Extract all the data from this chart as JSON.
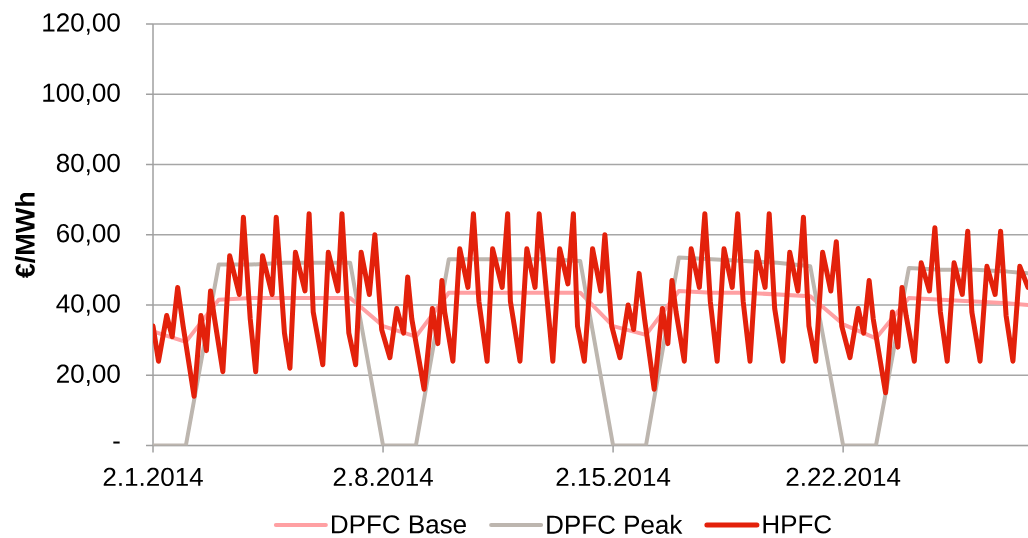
{
  "chart_data": {
    "type": "line",
    "ylabel": "€/MWh",
    "xlim": [
      "2014-02-01T00:00",
      "2014-02-27T15:00"
    ],
    "xticks": [
      {
        "value": "2014-02-01",
        "label": "2.1.2014"
      },
      {
        "value": "2014-02-08",
        "label": "2.8.2014"
      },
      {
        "value": "2014-02-15",
        "label": "2.15.2014"
      },
      {
        "value": "2014-02-22",
        "label": "2.22.2014"
      }
    ],
    "ylim": [
      0,
      120
    ],
    "yticks": [
      {
        "value": 0,
        "label": "-"
      },
      {
        "value": 20,
        "label": "20,00"
      },
      {
        "value": 40,
        "label": "40,00"
      },
      {
        "value": 60,
        "label": "60,00"
      },
      {
        "value": 80,
        "label": "80,00"
      },
      {
        "value": 100,
        "label": "100,00"
      },
      {
        "value": 120,
        "label": "120,00"
      }
    ],
    "grid": "y",
    "legend": "bottom",
    "marker": "none",
    "line_style": "solid",
    "series": [
      {
        "name": "DPFC Base",
        "color": "#ffa0a3",
        "x": [
          "2014-02-01",
          "2014-02-02",
          "2014-02-03",
          "2014-02-04",
          "2014-02-05",
          "2014-02-06",
          "2014-02-07",
          "2014-02-08",
          "2014-02-09",
          "2014-02-10",
          "2014-02-11",
          "2014-02-12",
          "2014-02-13",
          "2014-02-14",
          "2014-02-15",
          "2014-02-16",
          "2014-02-17",
          "2014-02-18",
          "2014-02-19",
          "2014-02-20",
          "2014-02-21",
          "2014-02-22",
          "2014-02-23",
          "2014-02-24",
          "2014-02-25",
          "2014-02-26",
          "2014-02-27",
          "2014-02-27T15:00"
        ],
        "values": [
          32.5,
          29.5,
          41.5,
          42,
          42,
          42,
          42,
          34,
          31,
          43.5,
          43.5,
          43.5,
          43.5,
          43.5,
          34,
          31.5,
          44,
          43.5,
          43.5,
          43,
          42.5,
          34.5,
          30.5,
          42,
          41.5,
          41,
          40.5,
          40
        ]
      },
      {
        "name": "DPFC Peak",
        "color": "#bdb6af",
        "x": [
          "2014-02-01",
          "2014-02-02",
          "2014-02-03",
          "2014-02-04",
          "2014-02-05",
          "2014-02-06",
          "2014-02-07",
          "2014-02-08",
          "2014-02-09",
          "2014-02-10",
          "2014-02-11",
          "2014-02-12",
          "2014-02-13",
          "2014-02-14",
          "2014-02-15",
          "2014-02-16",
          "2014-02-17",
          "2014-02-18",
          "2014-02-19",
          "2014-02-20",
          "2014-02-21",
          "2014-02-22",
          "2014-02-23",
          "2014-02-24",
          "2014-02-25",
          "2014-02-26",
          "2014-02-27",
          "2014-02-27T15:00"
        ],
        "values": [
          0,
          0,
          51.5,
          51.5,
          52,
          52,
          52,
          0,
          0,
          53,
          53,
          53,
          53,
          52.5,
          0,
          0,
          53.5,
          53,
          52.5,
          52,
          51,
          0,
          0,
          50.5,
          50,
          50,
          49.5,
          49
        ]
      },
      {
        "name": "HPFC",
        "color": "#e3210b",
        "x": [
          "2014-02-01T00:00",
          "2014-02-01T04:00",
          "2014-02-01T10:00",
          "2014-02-01T14:00",
          "2014-02-01T18:00",
          "2014-02-01T22:00",
          "2014-02-02T06:00",
          "2014-02-02T11:00",
          "2014-02-02T15:00",
          "2014-02-02T18:00",
          "2014-02-02T21:00",
          "2014-02-03T03:00",
          "2014-02-03T08:00",
          "2014-02-03T15:00",
          "2014-02-03T18:00",
          "2014-02-03T23:00",
          "2014-02-04T03:00",
          "2014-02-04T08:00",
          "2014-02-04T15:00",
          "2014-02-04T18:00",
          "2014-02-05T00:00",
          "2014-02-05T04:00",
          "2014-02-05T08:00",
          "2014-02-05T15:00",
          "2014-02-05T18:00",
          "2014-02-05T21:00",
          "2014-02-06T04:00",
          "2014-02-06T08:00",
          "2014-02-06T15:00",
          "2014-02-06T18:00",
          "2014-02-06T23:00",
          "2014-02-07T04:00",
          "2014-02-07T08:00",
          "2014-02-07T14:00",
          "2014-02-07T18:00",
          "2014-02-07T23:00",
          "2014-02-08T05:00",
          "2014-02-08T10:00",
          "2014-02-08T15:00",
          "2014-02-08T18:00",
          "2014-02-08T21:00",
          "2014-02-09T06:00",
          "2014-02-09T12:00",
          "2014-02-09T16:00",
          "2014-02-09T19:00",
          "2014-02-09T21:00",
          "2014-02-10T03:00",
          "2014-02-10T08:00",
          "2014-02-10T14:00",
          "2014-02-10T18:00",
          "2014-02-10T22:00",
          "2014-02-11T04:00",
          "2014-02-11T08:00",
          "2014-02-11T15:00",
          "2014-02-11T19:00",
          "2014-02-11T21:00",
          "2014-02-12T04:00",
          "2014-02-12T09:00",
          "2014-02-12T15:00",
          "2014-02-12T18:00",
          "2014-02-13T04:00",
          "2014-02-13T09:00",
          "2014-02-13T15:00",
          "2014-02-13T19:00",
          "2014-02-13T22:00",
          "2014-02-14T03:00",
          "2014-02-14T09:00",
          "2014-02-14T15:00",
          "2014-02-14T18:00",
          "2014-02-14T23:00",
          "2014-02-15T05:00",
          "2014-02-15T11:00",
          "2014-02-15T15:00",
          "2014-02-15T19:00",
          "2014-02-15T23:00",
          "2014-02-16T06:00",
          "2014-02-16T12:00",
          "2014-02-16T16:00",
          "2014-02-16T19:00",
          "2014-02-16T22:00",
          "2014-02-17T04:00",
          "2014-02-17T09:00",
          "2014-02-17T15:00",
          "2014-02-17T19:00",
          "2014-02-17T23:00",
          "2014-02-18T04:00",
          "2014-02-18T09:00",
          "2014-02-18T15:00",
          "2014-02-18T19:00",
          "2014-02-18T23:00",
          "2014-02-19T04:00",
          "2014-02-19T09:00",
          "2014-02-19T15:00",
          "2014-02-19T18:00",
          "2014-02-19T22:00",
          "2014-02-20T04:00",
          "2014-02-20T09:00",
          "2014-02-20T15:00",
          "2014-02-20T19:00",
          "2014-02-20T23:00",
          "2014-02-21T04:00",
          "2014-02-21T09:00",
          "2014-02-21T15:00",
          "2014-02-21T19:00",
          "2014-02-21T23:00",
          "2014-02-22T05:00",
          "2014-02-22T11:00",
          "2014-02-22T15:00",
          "2014-02-22T19:00",
          "2014-02-22T22:00",
          "2014-02-23T07:00",
          "2014-02-23T12:00",
          "2014-02-23T16:00",
          "2014-02-23T19:00",
          "2014-02-23T22:00",
          "2014-02-24T04:00",
          "2014-02-24T09:00",
          "2014-02-24T15:00",
          "2014-02-24T19:00",
          "2014-02-24T23:00",
          "2014-02-25T04:00",
          "2014-02-25T09:00",
          "2014-02-25T15:00",
          "2014-02-25T19:00",
          "2014-02-25T22:00",
          "2014-02-26T04:00",
          "2014-02-26T09:00",
          "2014-02-26T15:00",
          "2014-02-26T19:00",
          "2014-02-26T23:00",
          "2014-02-27T04:00",
          "2014-02-27T09:00",
          "2014-02-27T15:00"
        ],
        "values": [
          34,
          24,
          37,
          31,
          45,
          34,
          14,
          37,
          27,
          44,
          36,
          21,
          54,
          43,
          65,
          36,
          21,
          54,
          43,
          65,
          32,
          22,
          55,
          44,
          66,
          38,
          23,
          55,
          44,
          66,
          32,
          23,
          55,
          43,
          60,
          33,
          25,
          39,
          32,
          48,
          36,
          16,
          39,
          29,
          47,
          38,
          24,
          56,
          45,
          66,
          41,
          24,
          56,
          45,
          66,
          41,
          24,
          56,
          45,
          66,
          24,
          56,
          46,
          66,
          34,
          24,
          56,
          44,
          60,
          34,
          25,
          40,
          33,
          49,
          36,
          16,
          39,
          29,
          47,
          38,
          24,
          56,
          45,
          66,
          41,
          24,
          56,
          45,
          66,
          41,
          24,
          55,
          45,
          66,
          39,
          24,
          55,
          44,
          65,
          34,
          24,
          55,
          44,
          58,
          34,
          25,
          39,
          32,
          47,
          36,
          15,
          38,
          28,
          45,
          37,
          24,
          52,
          44,
          62,
          38,
          24,
          52,
          43,
          61,
          38,
          24,
          51,
          43,
          61,
          37,
          24,
          51,
          45
        ]
      }
    ]
  }
}
